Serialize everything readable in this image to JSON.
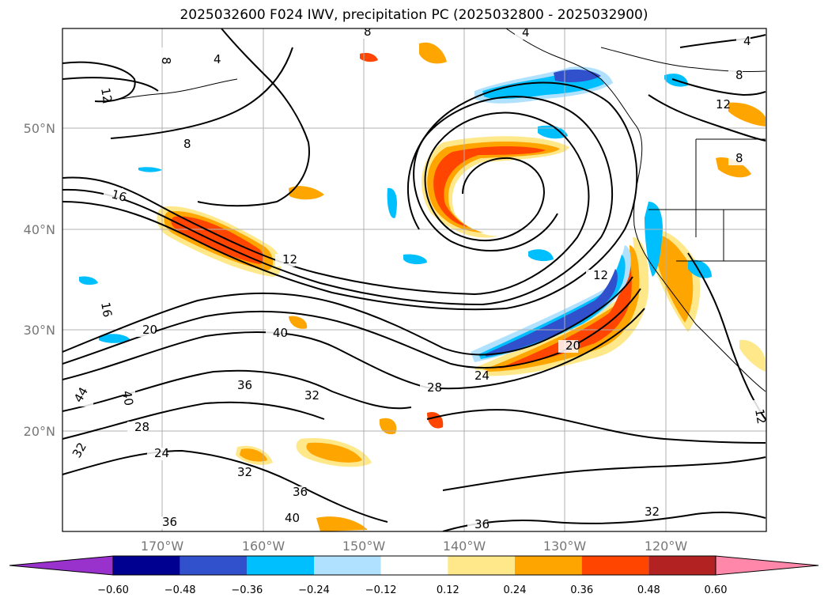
{
  "title": "2025032600 F024 IWV, precipitation PC (2025032800 - 2025032900)",
  "latitude_labels": [
    "50°N",
    "40°N",
    "30°N",
    "20°N"
  ],
  "longitude_labels": [
    "170°W",
    "160°W",
    "150°W",
    "140°W",
    "130°W",
    "120°W"
  ],
  "contour_labels": [
    "8",
    "8",
    "8",
    "4",
    "4",
    "4",
    "12",
    "12",
    "12",
    "16",
    "16",
    "20",
    "20",
    "24",
    "24",
    "28",
    "28",
    "32",
    "32",
    "32",
    "32",
    "36",
    "36",
    "36",
    "36",
    "40",
    "40",
    "40",
    "44",
    "8",
    "8",
    "12",
    "12"
  ],
  "colorbar": {
    "ticks": [
      "−0.60",
      "−0.48",
      "−0.36",
      "−0.24",
      "−0.12",
      "0.12",
      "0.24",
      "0.36",
      "0.48",
      "0.60"
    ],
    "colors": [
      "#9932cc",
      "#000090",
      "#3050cc",
      "#00bfff",
      "#b0e2ff",
      "#ffffff",
      "#ffe88a",
      "#ffa500",
      "#ff4500",
      "#b22222",
      "#ff88aa"
    ]
  },
  "colors": {
    "contour": "#000000",
    "grid": "#b0b0b0",
    "coast": "#000000"
  }
}
